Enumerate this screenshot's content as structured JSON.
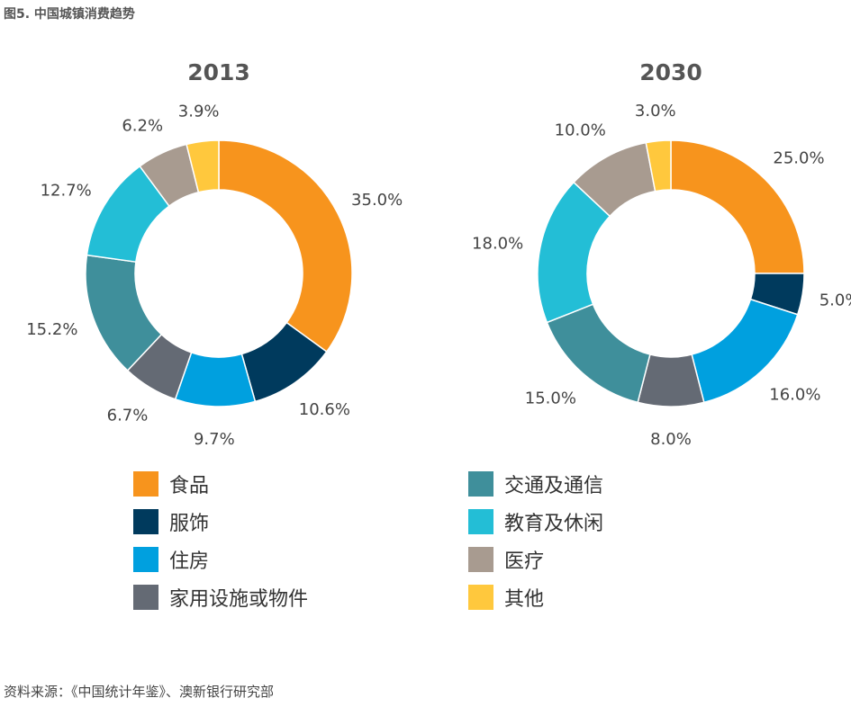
{
  "figure_title": "图5. 中国城镇消费趋势",
  "source": "资料来源：《中国统计年鉴》、澳新银行研究部",
  "categories": [
    "食品",
    "服饰",
    "住房",
    "家用设施或物件",
    "交通及通信",
    "教育及休闲",
    "医疗",
    "其他"
  ],
  "colors": [
    "#F7941D",
    "#003A5D",
    "#00A0DF",
    "#646A74",
    "#3F8F9B",
    "#23BED6",
    "#A89B90",
    "#FFC83D"
  ],
  "chart_data": [
    {
      "type": "pie",
      "title": "2013",
      "categories": [
        "食品",
        "服饰",
        "住房",
        "家用设施或物件",
        "交通及通信",
        "教育及休闲",
        "医疗",
        "其他"
      ],
      "values": [
        35.0,
        10.6,
        9.7,
        6.7,
        15.2,
        12.7,
        6.2,
        3.9
      ],
      "labels": [
        "35.0%",
        "10.6%",
        "9.7%",
        "6.7%",
        "15.2%",
        "12.7%",
        "6.2%",
        "3.9%"
      ]
    },
    {
      "type": "pie",
      "title": "2030",
      "categories": [
        "食品",
        "服饰",
        "住房",
        "家用设施或物件",
        "交通及通信",
        "教育及休闲",
        "医疗",
        "其他"
      ],
      "values": [
        25.0,
        5.0,
        16.0,
        8.0,
        15.0,
        18.0,
        10.0,
        3.0
      ],
      "labels": [
        "25.0%",
        "5.0%",
        "16.0%",
        "8.0%",
        "15.0%",
        "18.0%",
        "10.0%",
        "3.0%"
      ]
    }
  ]
}
